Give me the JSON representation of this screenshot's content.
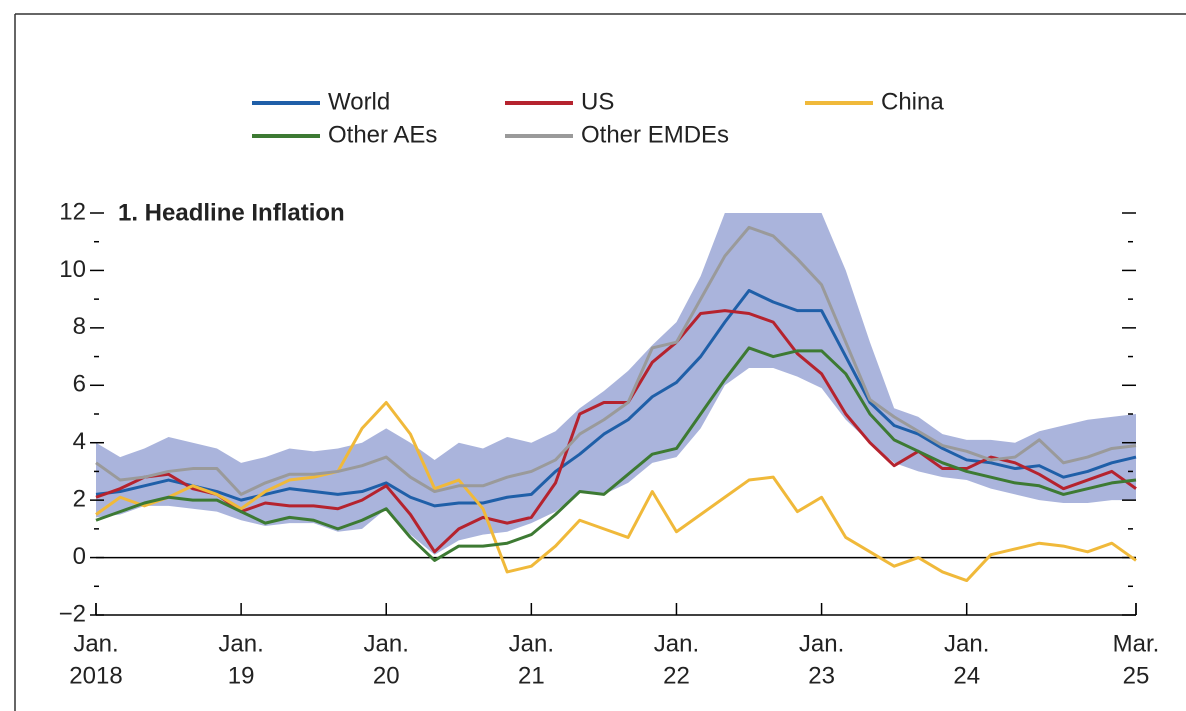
{
  "chart_data": {
    "type": "line",
    "subtitle": "1. Headline Inflation",
    "x": [
      "2018-01",
      "2018-03",
      "2018-05",
      "2018-07",
      "2018-09",
      "2018-11",
      "2019-01",
      "2019-03",
      "2019-05",
      "2019-07",
      "2019-09",
      "2019-11",
      "2020-01",
      "2020-03",
      "2020-05",
      "2020-07",
      "2020-09",
      "2020-11",
      "2021-01",
      "2021-03",
      "2021-05",
      "2021-07",
      "2021-09",
      "2021-11",
      "2022-01",
      "2022-03",
      "2022-05",
      "2022-07",
      "2022-09",
      "2022-11",
      "2023-01",
      "2023-03",
      "2023-05",
      "2023-07",
      "2023-09",
      "2023-11",
      "2024-01",
      "2024-03",
      "2024-05",
      "2024-07",
      "2024-09",
      "2024-11",
      "2025-01",
      "2025-03"
    ],
    "band": {
      "color": "#aab4dc",
      "low": [
        1.4,
        1.5,
        1.8,
        1.8,
        1.7,
        1.6,
        1.3,
        1.1,
        1.2,
        1.2,
        0.9,
        1.0,
        1.7,
        0.8,
        0.1,
        0.6,
        0.8,
        0.9,
        1.2,
        1.6,
        2.3,
        2.2,
        2.6,
        3.3,
        3.5,
        4.5,
        6.0,
        6.6,
        6.6,
        6.3,
        5.9,
        4.8,
        4.0,
        3.3,
        3.0,
        2.8,
        2.7,
        2.4,
        2.2,
        2.0,
        1.9,
        1.9,
        2.0,
        2.0
      ],
      "high": [
        4.0,
        3.5,
        3.8,
        4.2,
        4.0,
        3.8,
        3.3,
        3.5,
        3.8,
        3.7,
        3.8,
        4.0,
        4.5,
        4.0,
        3.4,
        4.0,
        3.8,
        4.2,
        4.0,
        4.4,
        5.2,
        5.8,
        6.5,
        7.4,
        8.2,
        9.8,
        12,
        12,
        12,
        12,
        12,
        10,
        7.5,
        5.2,
        4.9,
        4.3,
        4.1,
        4.1,
        4.0,
        4.4,
        4.6,
        4.8,
        4.9,
        5.0
      ]
    },
    "series": [
      {
        "name": "World",
        "color": "#1f5fa8",
        "values": [
          2.2,
          2.3,
          2.5,
          2.7,
          2.5,
          2.3,
          2.0,
          2.2,
          2.4,
          2.3,
          2.2,
          2.3,
          2.6,
          2.1,
          1.8,
          1.9,
          1.9,
          2.1,
          2.2,
          3.0,
          3.6,
          4.3,
          4.8,
          5.6,
          6.1,
          7.0,
          8.2,
          9.3,
          8.9,
          8.6,
          8.6,
          7.0,
          5.4,
          4.6,
          4.3,
          3.8,
          3.4,
          3.3,
          3.1,
          3.2,
          2.8,
          3.0,
          3.3,
          3.5
        ]
      },
      {
        "name": "US",
        "color": "#b5232e",
        "values": [
          2.1,
          2.4,
          2.8,
          2.9,
          2.4,
          2.2,
          1.6,
          1.9,
          1.8,
          1.8,
          1.7,
          2.0,
          2.5,
          1.5,
          0.2,
          1.0,
          1.4,
          1.2,
          1.4,
          2.6,
          5.0,
          5.4,
          5.4,
          6.8,
          7.5,
          8.5,
          8.6,
          8.5,
          8.2,
          7.1,
          6.4,
          5.0,
          4.0,
          3.2,
          3.7,
          3.1,
          3.1,
          3.5,
          3.3,
          2.9,
          2.4,
          2.7,
          3.0,
          2.4
        ]
      },
      {
        "name": "China",
        "color": "#f0b93a",
        "values": [
          1.5,
          2.1,
          1.8,
          2.1,
          2.5,
          2.2,
          1.7,
          2.3,
          2.7,
          2.8,
          3.0,
          4.5,
          5.4,
          4.3,
          2.4,
          2.7,
          1.7,
          -0.5,
          -0.3,
          0.4,
          1.3,
          1.0,
          0.7,
          2.3,
          0.9,
          1.5,
          2.1,
          2.7,
          2.8,
          1.6,
          2.1,
          0.7,
          0.2,
          -0.3,
          0.0,
          -0.5,
          -0.8,
          0.1,
          0.3,
          0.5,
          0.4,
          0.2,
          0.5,
          -0.1
        ]
      },
      {
        "name": "Other AEs",
        "color": "#3d7a33",
        "values": [
          1.3,
          1.6,
          1.9,
          2.1,
          2.0,
          2.0,
          1.6,
          1.2,
          1.4,
          1.3,
          1.0,
          1.3,
          1.7,
          0.7,
          -0.1,
          0.4,
          0.4,
          0.5,
          0.8,
          1.5,
          2.3,
          2.2,
          2.9,
          3.6,
          3.8,
          5.0,
          6.2,
          7.3,
          7.0,
          7.2,
          7.2,
          6.4,
          5.0,
          4.1,
          3.7,
          3.3,
          3.0,
          2.8,
          2.6,
          2.5,
          2.2,
          2.4,
          2.6,
          2.7
        ]
      },
      {
        "name": "Other EMDEs",
        "color": "#9a9a9a",
        "values": [
          3.3,
          2.7,
          2.8,
          3.0,
          3.1,
          3.1,
          2.2,
          2.6,
          2.9,
          2.9,
          3.0,
          3.2,
          3.5,
          2.8,
          2.3,
          2.5,
          2.5,
          2.8,
          3.0,
          3.4,
          4.3,
          4.8,
          5.4,
          7.3,
          7.5,
          9.0,
          10.5,
          11.5,
          11.2,
          10.4,
          9.5,
          7.5,
          5.5,
          4.9,
          4.4,
          3.9,
          3.7,
          3.4,
          3.5,
          4.1,
          3.3,
          3.5,
          3.8,
          3.9
        ]
      }
    ],
    "xlim": [
      "2018-01",
      "2025-03"
    ],
    "xticks": [
      {
        "value": "2018-01",
        "label": [
          "Jan.",
          "2018"
        ]
      },
      {
        "value": "2019-01",
        "label": [
          "Jan.",
          "19"
        ]
      },
      {
        "value": "2020-01",
        "label": [
          "Jan.",
          "20"
        ]
      },
      {
        "value": "2021-01",
        "label": [
          "Jan.",
          "21"
        ]
      },
      {
        "value": "2022-01",
        "label": [
          "Jan.",
          "22"
        ]
      },
      {
        "value": "2023-01",
        "label": [
          "Jan.",
          "23"
        ]
      },
      {
        "value": "2024-01",
        "label": [
          "Jan.",
          "24"
        ]
      },
      {
        "value": "2025-03",
        "label": [
          "Mar.",
          "25"
        ]
      }
    ],
    "ylim": [
      -2,
      12
    ],
    "yticks": [
      {
        "value": -2,
        "label": "−2"
      },
      0,
      2,
      4,
      6,
      8,
      10,
      12
    ],
    "yminorticks": [
      -1,
      1,
      3,
      5,
      7,
      9,
      11
    ]
  }
}
